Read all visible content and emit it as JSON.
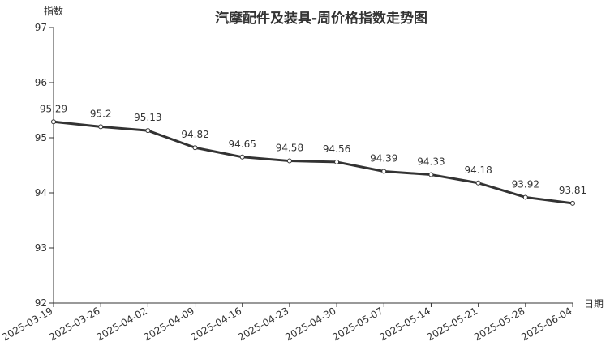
{
  "chart_data": {
    "type": "line",
    "title": "汽摩配件及装具-周价格指数走势图",
    "y_label": "指数",
    "x_label": "日期",
    "categories": [
      "2025-03-19",
      "2025-03-26",
      "2025-04-02",
      "2025-04-09",
      "2025-04-16",
      "2025-04-23",
      "2025-04-30",
      "2025-05-07",
      "2025-05-14",
      "2025-05-21",
      "2025-05-28",
      "2025-06-04"
    ],
    "values": [
      95.29,
      95.2,
      95.13,
      94.82,
      94.65,
      94.58,
      94.56,
      94.39,
      94.33,
      94.18,
      93.92,
      93.81
    ],
    "color": "#333333",
    "ylim": [
      92,
      97
    ],
    "yticks": [
      92,
      93,
      94,
      95,
      96,
      97
    ],
    "grid": false
  }
}
